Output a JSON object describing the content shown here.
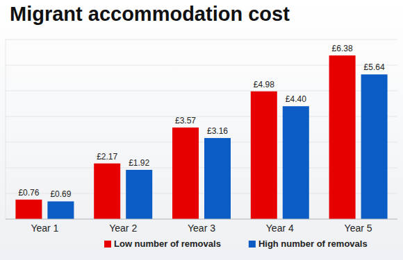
{
  "chart_data": {
    "type": "bar",
    "title": "Migrant accommodation cost",
    "categories": [
      "Year 1",
      "Year 2",
      "Year 3",
      "Year 4",
      "Year 5"
    ],
    "series": [
      {
        "name": "Low number of removals",
        "color": "#e60000",
        "values": [
          0.76,
          2.17,
          3.57,
          4.98,
          6.38
        ],
        "value_labels": [
          "£0.76",
          "£2.17",
          "£3.57",
          "£4.98",
          "£6.38"
        ]
      },
      {
        "name": "High number of removals",
        "color": "#0b5cc4",
        "values": [
          0.69,
          1.92,
          3.16,
          4.4,
          5.64
        ],
        "value_labels": [
          "£0.69",
          "£1.92",
          "£3.16",
          "£4.40",
          "£5.64"
        ]
      }
    ],
    "ylim": [
      0,
      7
    ],
    "yticks": [
      0,
      1,
      2,
      3,
      4,
      5,
      6,
      7
    ],
    "grid": true,
    "tick_labels": "x",
    "data_labels": true,
    "legend": "bottom"
  }
}
